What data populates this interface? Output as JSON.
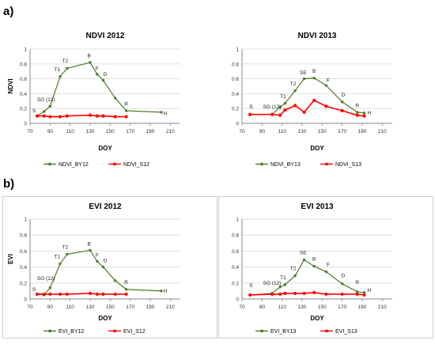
{
  "panels": [
    {
      "label": "a)"
    },
    {
      "label": "b)"
    }
  ],
  "colors": {
    "bare": "#4f7a28",
    "sown": "#ff0000",
    "grid": "#d9d9d9",
    "axis": "#888888"
  },
  "chart_data": [
    {
      "type": "line",
      "title": "NDVI 2012",
      "xlabel": "DOY",
      "ylabel": "NDVI",
      "xlim": [
        70,
        220
      ],
      "ylim": [
        0,
        1.0
      ],
      "xticks": [
        70,
        90,
        110,
        130,
        150,
        170,
        190,
        210
      ],
      "yticks": [
        0,
        0.2,
        0.4,
        0.6,
        0.8,
        1.0
      ],
      "series": [
        {
          "name": "NDVI_BY12",
          "color": "#4f7a28",
          "x": [
            77,
            84,
            90,
            100,
            107,
            130,
            137,
            143,
            155,
            166,
            201
          ],
          "y": [
            0.1,
            0.16,
            0.23,
            0.63,
            0.74,
            0.82,
            0.66,
            0.58,
            0.34,
            0.17,
            0.15
          ]
        },
        {
          "name": "NDVI_S12",
          "color": "#ff0000",
          "x": [
            77,
            84,
            90,
            100,
            107,
            130,
            137,
            143,
            155,
            166
          ],
          "y": [
            0.1,
            0.1,
            0.09,
            0.09,
            0.1,
            0.11,
            0.1,
            0.1,
            0.09,
            0.09
          ]
        }
      ],
      "annotations": [
        {
          "text": "S",
          "x": 74,
          "y": 0.15
        },
        {
          "text": "SG (12)",
          "x": 86,
          "y": 0.3
        },
        {
          "text": "T1",
          "x": 97,
          "y": 0.7
        },
        {
          "text": "T2",
          "x": 105,
          "y": 0.82
        },
        {
          "text": "B",
          "x": 129,
          "y": 0.89
        },
        {
          "text": "F",
          "x": 137,
          "y": 0.72
        },
        {
          "text": "D",
          "x": 145,
          "y": 0.64
        },
        {
          "text": "R",
          "x": 166,
          "y": 0.24
        },
        {
          "text": "H",
          "x": 205,
          "y": 0.11
        }
      ]
    },
    {
      "type": "line",
      "title": "NDVI 2013",
      "xlabel": "DOY",
      "ylabel": "",
      "xlim": [
        70,
        220
      ],
      "ylim": [
        0,
        1.0
      ],
      "xticks": [
        70,
        90,
        110,
        130,
        150,
        170,
        190,
        210
      ],
      "yticks": [
        0,
        0.2,
        0.4,
        0.6,
        0.8,
        1.0
      ],
      "series": [
        {
          "name": "NDVI_BY13",
          "color": "#4f7a28",
          "x": [
            78,
            100,
            108,
            113,
            123,
            132,
            142,
            154,
            170,
            185,
            192
          ],
          "y": [
            0.12,
            0.12,
            0.22,
            0.27,
            0.44,
            0.6,
            0.61,
            0.51,
            0.29,
            0.15,
            0.14
          ]
        },
        {
          "name": "NDVI_S13",
          "color": "#ff0000",
          "x": [
            78,
            100,
            108,
            113,
            123,
            132,
            142,
            154,
            170,
            185,
            192
          ],
          "y": [
            0.12,
            0.12,
            0.11,
            0.18,
            0.24,
            0.15,
            0.31,
            0.23,
            0.17,
            0.11,
            0.1
          ]
        }
      ],
      "annotations": [
        {
          "text": "S",
          "x": 79,
          "y": 0.2
        },
        {
          "text": "SG (12)",
          "x": 100,
          "y": 0.2
        },
        {
          "text": "T1",
          "x": 111,
          "y": 0.34
        },
        {
          "text": "T2",
          "x": 121,
          "y": 0.51
        },
        {
          "text": "SE",
          "x": 131,
          "y": 0.66
        },
        {
          "text": "B",
          "x": 142,
          "y": 0.68
        },
        {
          "text": "F",
          "x": 156,
          "y": 0.56
        },
        {
          "text": "D",
          "x": 171,
          "y": 0.36
        },
        {
          "text": "R",
          "x": 185,
          "y": 0.22
        },
        {
          "text": "H",
          "x": 197,
          "y": 0.12
        }
      ]
    },
    {
      "type": "line",
      "title": "EVI 2012",
      "xlabel": "DOY",
      "ylabel": "EVI",
      "xlim": [
        70,
        220
      ],
      "ylim": [
        0,
        1.0
      ],
      "xticks": [
        70,
        90,
        110,
        130,
        150,
        170,
        190,
        210
      ],
      "yticks": [
        0,
        0.2,
        0.4,
        0.6,
        0.8,
        1.0
      ],
      "series": [
        {
          "name": "EVI_BY12",
          "color": "#4f7a28",
          "x": [
            77,
            84,
            90,
            100,
            107,
            130,
            137,
            143,
            155,
            166,
            201
          ],
          "y": [
            0.06,
            0.05,
            0.14,
            0.44,
            0.56,
            0.61,
            0.47,
            0.4,
            0.23,
            0.12,
            0.1
          ]
        },
        {
          "name": "EVI_S12",
          "color": "#ff0000",
          "x": [
            77,
            84,
            90,
            100,
            107,
            130,
            137,
            143,
            155,
            166
          ],
          "y": [
            0.06,
            0.06,
            0.06,
            0.06,
            0.06,
            0.07,
            0.06,
            0.06,
            0.06,
            0.06
          ]
        }
      ],
      "annotations": [
        {
          "text": "S",
          "x": 74,
          "y": 0.1
        },
        {
          "text": "SG (12)",
          "x": 86,
          "y": 0.24
        },
        {
          "text": "T1",
          "x": 97,
          "y": 0.51
        },
        {
          "text": "T2",
          "x": 105,
          "y": 0.63
        },
        {
          "text": "B",
          "x": 129,
          "y": 0.67
        },
        {
          "text": "F",
          "x": 137,
          "y": 0.53
        },
        {
          "text": "D",
          "x": 145,
          "y": 0.46
        },
        {
          "text": "R",
          "x": 166,
          "y": 0.19
        },
        {
          "text": "H",
          "x": 205,
          "y": 0.08
        }
      ]
    },
    {
      "type": "line",
      "title": "EVI 2013",
      "xlabel": "DOY",
      "ylabel": "",
      "xlim": [
        70,
        220
      ],
      "ylim": [
        0,
        1.0
      ],
      "xticks": [
        70,
        90,
        110,
        130,
        150,
        170,
        190,
        210
      ],
      "yticks": [
        0,
        0.2,
        0.4,
        0.6,
        0.8,
        1.0
      ],
      "series": [
        {
          "name": "EVI_BY13",
          "color": "#4f7a28",
          "x": [
            78,
            100,
            108,
            113,
            123,
            132,
            142,
            154,
            170,
            185,
            192
          ],
          "y": [
            0.05,
            0.07,
            0.15,
            0.18,
            0.29,
            0.49,
            0.41,
            0.34,
            0.19,
            0.09,
            0.08
          ]
        },
        {
          "name": "EVI_S13",
          "color": "#ff0000",
          "x": [
            78,
            100,
            108,
            113,
            123,
            132,
            142,
            154,
            170,
            185,
            192
          ],
          "y": [
            0.05,
            0.06,
            0.06,
            0.07,
            0.07,
            0.07,
            0.08,
            0.06,
            0.06,
            0.06,
            0.05
          ]
        }
      ],
      "annotations": [
        {
          "text": "S",
          "x": 79,
          "y": 0.15
        },
        {
          "text": "SG (12)",
          "x": 100,
          "y": 0.18
        },
        {
          "text": "T1",
          "x": 111,
          "y": 0.25
        },
        {
          "text": "T2",
          "x": 121,
          "y": 0.36
        },
        {
          "text": "SE",
          "x": 131,
          "y": 0.56
        },
        {
          "text": "B",
          "x": 142,
          "y": 0.48
        },
        {
          "text": "F",
          "x": 156,
          "y": 0.41
        },
        {
          "text": "D",
          "x": 171,
          "y": 0.27
        },
        {
          "text": "R",
          "x": 185,
          "y": 0.19
        },
        {
          "text": "H",
          "x": 197,
          "y": 0.09
        }
      ]
    }
  ]
}
